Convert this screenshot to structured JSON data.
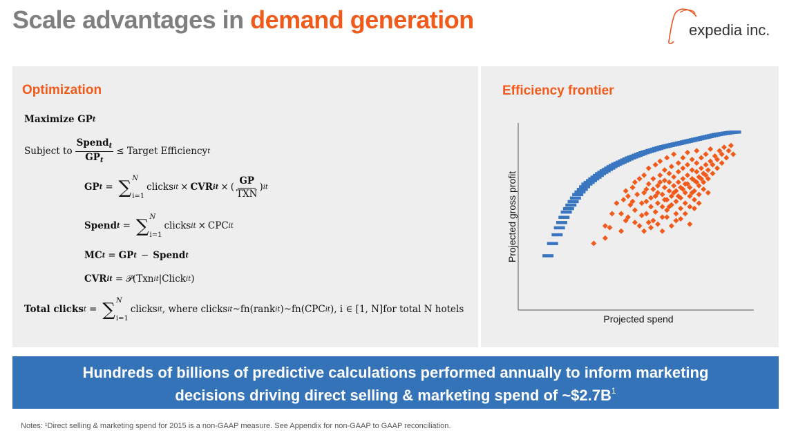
{
  "header": {
    "title_part1": "Scale advantages in ",
    "title_part2": "demand generation",
    "logo_text": "expedia inc.",
    "title_gray_color": "#7f7f7f",
    "accent_color": "#f05a1a"
  },
  "optimization": {
    "heading": "Optimization",
    "maximize": {
      "prefix": "Maximize GP",
      "sub": "t"
    },
    "subject": {
      "prefix": "Subject to",
      "num": "Spend",
      "num_sub": "t",
      "den": "GP",
      "den_sub": "t",
      "rhs": "≤ Target Efficiency",
      "rhs_sub": "t"
    },
    "gp_eq": {
      "lhs": "GP",
      "lhs_sub": "t",
      "eq": "=",
      "sum_upper": "N",
      "sum_lower": "i=1",
      "term1": "clicks",
      "term1_sub": "it",
      "times1": "×",
      "cvr": "CVR",
      "cvr_sub": "it",
      "times2": "×",
      "open_paren": "(",
      "frac_num": "GP",
      "frac_den": "TXN",
      "close_paren": ")",
      "close_sub": "it"
    },
    "spend_eq": {
      "lhs": "Spend",
      "lhs_sub": "t",
      "eq": "=",
      "sum_upper": "N",
      "sum_lower": "i=1",
      "term1": "clicks",
      "term1_sub": "it",
      "times": "×",
      "term2": "CPC",
      "term2_sub": "it"
    },
    "mc_eq": {
      "lhs": "MC",
      "lhs_sub": "t",
      "eq": "=",
      "gp": "GP",
      "gp_sub": "t",
      "minus": "−",
      "spend": "Spend",
      "spend_sub": "t"
    },
    "cvr_eq": {
      "lhs": "CVR",
      "lhs_sub": "it",
      "eq": "=",
      "p": "𝒫(Txn",
      "p_sub1": "it",
      "bar": "|Click",
      "p_sub2": "it",
      "close": ")"
    },
    "total_eq": {
      "lhs": "Total clicks",
      "lhs_sub": "t",
      "eq": "=",
      "sum_upper": "N",
      "sum_lower": "i=1",
      "part1": "clicks",
      "part1_sub": "it",
      "part2": ", where clicks",
      "part2_sub": "it",
      "part3": "~fn(rank",
      "part3_sub": "it",
      "part4": ")~fn(CPC",
      "part4_sub": "it",
      "part5": "), i ∈ [1, N]for total N hotels"
    }
  },
  "chart_data": {
    "type": "scatter",
    "title": "Efficiency frontier",
    "xlabel": "Projected spend",
    "ylabel": "Projected gross profit",
    "xlim": [
      0,
      100
    ],
    "ylim": [
      0,
      100
    ],
    "grid": false,
    "series": [
      {
        "color": "#3a76c0",
        "marker": "dash",
        "points": [
          [
            10,
            28
          ],
          [
            12,
            35
          ],
          [
            14,
            40
          ],
          [
            15,
            44
          ],
          [
            16,
            47
          ],
          [
            17,
            50
          ],
          [
            18,
            53
          ],
          [
            19,
            55
          ],
          [
            20,
            57
          ],
          [
            21,
            59
          ],
          [
            22,
            61
          ],
          [
            23,
            63
          ],
          [
            24,
            64.5
          ],
          [
            25,
            66
          ],
          [
            26,
            67.5
          ],
          [
            27,
            69
          ],
          [
            28,
            70
          ],
          [
            29,
            71
          ],
          [
            30,
            72
          ],
          [
            31,
            73
          ],
          [
            32,
            74
          ],
          [
            33,
            75
          ],
          [
            34,
            75.8
          ],
          [
            35,
            76.6
          ],
          [
            36,
            77.4
          ],
          [
            37,
            78.2
          ],
          [
            38,
            79
          ],
          [
            39,
            79.7
          ],
          [
            40,
            80.4
          ],
          [
            41,
            81
          ],
          [
            42,
            81.6
          ],
          [
            43,
            82.2
          ],
          [
            44,
            82.8
          ],
          [
            45,
            83.4
          ],
          [
            46,
            84
          ],
          [
            47,
            84.5
          ],
          [
            48,
            85
          ],
          [
            49,
            85.5
          ],
          [
            50,
            86
          ],
          [
            51,
            86.5
          ],
          [
            52,
            87
          ],
          [
            53,
            87.4
          ],
          [
            54,
            87.8
          ],
          [
            55,
            88.2
          ],
          [
            56,
            88.6
          ],
          [
            57,
            89
          ],
          [
            58,
            89.4
          ],
          [
            59,
            89.8
          ],
          [
            60,
            90.2
          ],
          [
            61,
            90.5
          ],
          [
            62,
            90.8
          ],
          [
            63,
            91.1
          ],
          [
            64,
            91.4
          ],
          [
            65,
            91.7
          ],
          [
            66,
            92
          ],
          [
            67,
            92.3
          ],
          [
            68,
            92.6
          ],
          [
            69,
            92.9
          ],
          [
            70,
            93.2
          ],
          [
            71,
            93.5
          ],
          [
            72,
            93.8
          ],
          [
            73,
            94.1
          ],
          [
            74,
            94.4
          ],
          [
            75,
            94.7
          ],
          [
            76,
            95
          ],
          [
            77,
            95.3
          ],
          [
            78,
            95.6
          ],
          [
            79,
            95.9
          ],
          [
            80,
            96.2
          ],
          [
            81,
            96.5
          ],
          [
            82,
            96.8
          ],
          [
            83,
            97.1
          ],
          [
            84,
            97.4
          ],
          [
            85,
            97.6
          ],
          [
            86,
            97.8
          ],
          [
            87,
            98
          ],
          [
            88,
            98.2
          ],
          [
            89,
            98.4
          ],
          [
            90,
            98.6
          ],
          [
            91,
            98.7
          ],
          [
            92,
            98.8
          ]
        ]
      },
      {
        "color": "#f05a1a",
        "marker": "diamond",
        "points": [
          [
            30,
            35
          ],
          [
            35,
            38
          ],
          [
            35,
            45
          ],
          [
            37,
            44
          ],
          [
            42,
            42
          ],
          [
            42,
            52
          ],
          [
            43,
            60
          ],
          [
            44,
            65
          ],
          [
            45,
            62
          ],
          [
            46,
            57
          ],
          [
            47,
            67
          ],
          [
            48,
            47
          ],
          [
            48,
            54
          ],
          [
            48,
            70
          ],
          [
            50,
            72
          ],
          [
            51,
            51
          ],
          [
            51,
            58
          ],
          [
            52,
            64
          ],
          [
            52,
            74
          ],
          [
            53,
            52
          ],
          [
            53,
            59
          ],
          [
            54,
            69
          ],
          [
            54,
            78
          ],
          [
            55,
            56
          ],
          [
            55,
            61
          ],
          [
            56,
            48
          ],
          [
            56,
            66
          ],
          [
            56,
            72
          ],
          [
            57,
            80
          ],
          [
            57,
            53
          ],
          [
            58,
            58
          ],
          [
            58,
            64
          ],
          [
            58,
            68
          ],
          [
            59,
            74
          ],
          [
            59,
            82
          ],
          [
            60,
            50
          ],
          [
            60,
            56
          ],
          [
            60,
            63
          ],
          [
            61,
            67
          ],
          [
            61,
            71
          ],
          [
            61,
            77
          ],
          [
            62,
            84
          ],
          [
            62,
            54
          ],
          [
            62,
            60
          ],
          [
            63,
            65
          ],
          [
            63,
            70
          ],
          [
            63,
            75
          ],
          [
            64,
            79
          ],
          [
            64,
            57
          ],
          [
            64,
            62
          ],
          [
            65,
            68
          ],
          [
            65,
            73
          ],
          [
            65,
            86
          ],
          [
            66,
            52
          ],
          [
            66,
            59
          ],
          [
            66,
            65
          ],
          [
            67,
            70
          ],
          [
            67,
            76
          ],
          [
            67,
            81
          ],
          [
            68,
            55
          ],
          [
            68,
            61
          ],
          [
            68,
            67
          ],
          [
            69,
            72
          ],
          [
            69,
            78
          ],
          [
            69,
            84
          ],
          [
            70,
            58
          ],
          [
            70,
            64
          ],
          [
            70,
            69
          ],
          [
            71,
            74
          ],
          [
            71,
            80
          ],
          [
            71,
            87
          ],
          [
            72,
            56
          ],
          [
            72,
            62
          ],
          [
            72,
            67
          ],
          [
            73,
            72
          ],
          [
            73,
            77
          ],
          [
            73,
            83
          ],
          [
            74,
            60
          ],
          [
            74,
            65
          ],
          [
            74,
            71
          ],
          [
            75,
            76
          ],
          [
            75,
            81
          ],
          [
            75,
            88
          ],
          [
            76,
            63
          ],
          [
            76,
            68
          ],
          [
            76,
            73
          ],
          [
            77,
            78
          ],
          [
            77,
            84
          ],
          [
            78,
            66
          ],
          [
            78,
            70
          ],
          [
            78,
            75
          ],
          [
            79,
            80
          ],
          [
            79,
            86
          ],
          [
            80,
            72
          ],
          [
            80,
            77
          ],
          [
            81,
            82
          ],
          [
            81,
            89
          ],
          [
            82,
            75
          ],
          [
            82,
            80
          ],
          [
            83,
            85
          ],
          [
            84,
            78
          ],
          [
            84,
            83
          ],
          [
            85,
            88
          ],
          [
            86,
            81
          ],
          [
            86,
            86
          ],
          [
            87,
            90
          ],
          [
            88,
            84
          ],
          [
            89,
            88
          ],
          [
            90,
            91
          ],
          [
            91,
            86
          ],
          [
            47,
            59
          ],
          [
            49,
            63
          ],
          [
            53,
            66
          ],
          [
            57,
            62
          ],
          [
            59,
            70
          ],
          [
            61,
            60
          ],
          [
            63,
            56
          ],
          [
            65,
            64
          ],
          [
            67,
            62
          ],
          [
            69,
            66
          ],
          [
            71,
            69
          ],
          [
            73,
            64
          ],
          [
            75,
            70
          ],
          [
            77,
            72
          ],
          [
            79,
            74
          ],
          [
            45,
            50
          ],
          [
            50,
            45
          ],
          [
            55,
            44
          ],
          [
            60,
            42
          ],
          [
            52,
            42
          ],
          [
            58,
            46
          ],
          [
            62,
            50
          ],
          [
            66,
            48
          ],
          [
            70,
            52
          ],
          [
            74,
            55
          ],
          [
            40,
            58
          ],
          [
            44,
            48
          ],
          [
            38,
            52
          ],
          [
            54,
            47
          ],
          [
            64,
            45
          ],
          [
            68,
            49
          ],
          [
            72,
            46
          ],
          [
            76,
            58
          ],
          [
            80,
            64
          ]
        ]
      }
    ]
  },
  "banner": {
    "line1": "Hundreds of billions of predictive calculations performed annually to inform marketing",
    "line2": "decisions driving direct selling & marketing spend of ~$2.7B",
    "sup": "1",
    "background_color": "#3573b9"
  },
  "notes": {
    "text": "Notes: ¹Direct selling & marketing spend for 2015 is a non-GAAP measure. See Appendix for non-GAAP to GAAP reconciliation."
  }
}
